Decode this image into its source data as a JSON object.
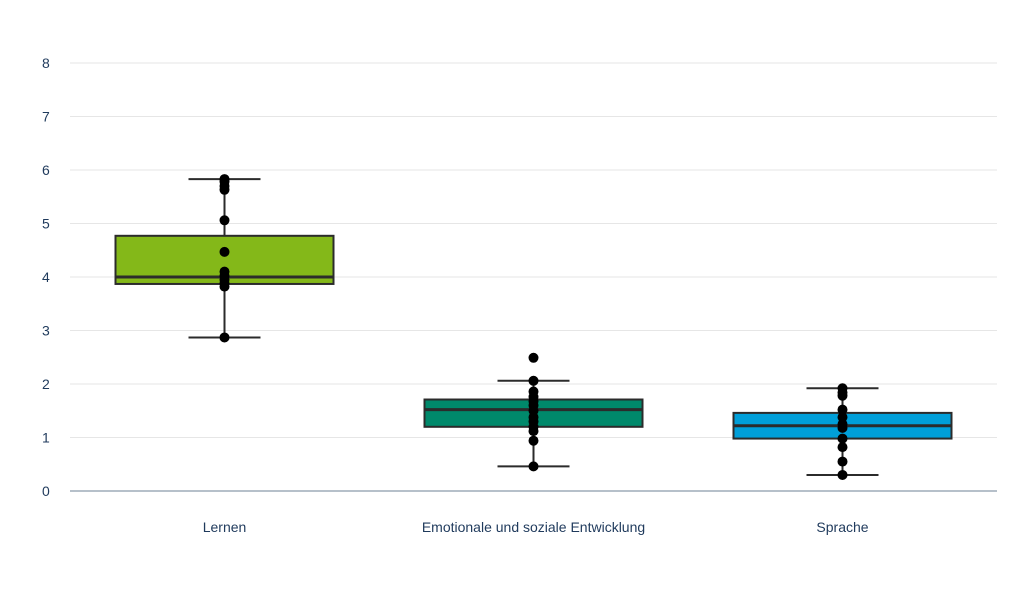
{
  "chart_data": {
    "type": "box",
    "title": "",
    "xlabel": "",
    "ylabel": "",
    "ylim": [
      0,
      8
    ],
    "yticks": [
      0,
      1,
      2,
      3,
      4,
      5,
      6,
      7,
      8
    ],
    "grid": true,
    "categories": [
      "Lernen",
      "Emotionale und soziale Entwicklung",
      "Sprache"
    ],
    "series": [
      {
        "category": "Lernen",
        "color": "#84b819",
        "whisker_low": 2.87,
        "q1": 3.87,
        "median": 4.0,
        "q3": 4.77,
        "whisker_high": 5.83,
        "points": [
          2.87,
          3.82,
          3.88,
          3.95,
          4.02,
          4.1,
          4.47,
          5.06,
          5.63,
          5.7,
          5.78,
          5.83
        ]
      },
      {
        "category": "Emotionale und soziale Entwicklung",
        "color": "#00896b",
        "whisker_low": 0.46,
        "q1": 1.2,
        "median": 1.52,
        "q3": 1.71,
        "whisker_high": 2.06,
        "points": [
          0.46,
          0.94,
          1.12,
          1.2,
          1.3,
          1.38,
          1.5,
          1.6,
          1.68,
          1.76,
          1.86,
          2.06,
          2.49
        ]
      },
      {
        "category": "Sprache",
        "color": "#009fd9",
        "whisker_low": 0.3,
        "q1": 0.98,
        "median": 1.22,
        "q3": 1.46,
        "whisker_high": 1.92,
        "points": [
          0.3,
          0.55,
          0.82,
          0.98,
          1.18,
          1.25,
          1.38,
          1.52,
          1.78,
          1.84,
          1.92
        ]
      }
    ]
  }
}
